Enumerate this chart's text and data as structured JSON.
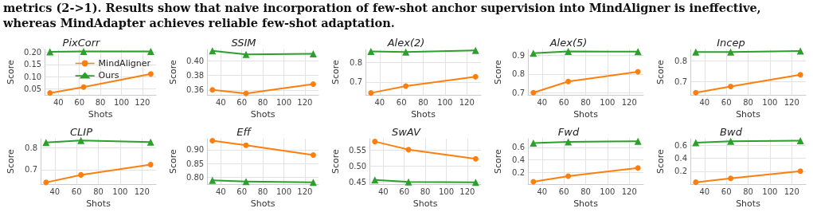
{
  "chart_data": [
    {
      "type": "line",
      "title": "PixCorr",
      "xlabel": "Shots",
      "ylabel": "Score",
      "annotations": [
        "metrics (2->1). Results show that naive incorporation of few-shot anchor supervision into MindAligner is ineffective, whereas MindAdapter achieves reliable few-shot adaptation."
      ],
      "x": [
        32,
        64,
        128
      ],
      "xlim": [
        27,
        133
      ],
      "xticks": [
        40,
        60,
        80,
        100,
        120
      ],
      "ylim": [
        0.025,
        0.212
      ],
      "yticks": [
        0.05,
        {
          "value": 0.1,
          "label": "0.10"
        },
        0.15,
        {
          "value": 0.2,
          "label": "0.20"
        }
      ],
      "grid": true,
      "legend": "top right",
      "series": [
        {
          "name": "MindAligner",
          "color": "#ff7f0e",
          "marker": "circle",
          "values": [
            0.033,
            0.057,
            0.111
          ]
        },
        {
          "name": "Ours",
          "color": "#2ca02c",
          "marker": "triangle",
          "values": [
            0.202,
            0.204,
            0.204
          ]
        }
      ]
    },
    {
      "type": "line",
      "title": "SSIM",
      "xlabel": "Shots",
      "ylabel": "Score",
      "x": [
        32,
        64,
        128
      ],
      "xlim": [
        27,
        133
      ],
      "xticks": [
        40,
        60,
        80,
        100,
        120
      ],
      "ylim": [
        0.353,
        0.416
      ],
      "yticks": [
        0.36,
        0.38,
        {
          "value": 0.4,
          "label": "0.40"
        }
      ],
      "grid": true,
      "series": [
        {
          "color": "#ff7f0e",
          "marker": "circle",
          "values": [
            0.36,
            0.355,
            0.368
          ]
        },
        {
          "color": "#2ca02c",
          "marker": "triangle",
          "values": [
            0.414,
            0.409,
            0.41
          ]
        }
      ]
    },
    {
      "type": "line",
      "title": "Alex(2)",
      "xlabel": "Shots",
      "ylabel": "Score",
      "x": [
        32,
        64,
        128
      ],
      "xlim": [
        27,
        133
      ],
      "xticks": [
        40,
        60,
        80,
        100,
        120
      ],
      "ylim": [
        0.635,
        0.865
      ],
      "yticks": [
        0.7,
        0.8
      ],
      "grid": true,
      "series": [
        {
          "color": "#ff7f0e",
          "marker": "circle",
          "values": [
            0.645,
            0.68,
            0.727
          ]
        },
        {
          "color": "#2ca02c",
          "marker": "triangle",
          "values": [
            0.855,
            0.852,
            0.86
          ]
        }
      ]
    },
    {
      "type": "line",
      "title": "Alex(5)",
      "xlabel": "Shots",
      "ylabel": "Score",
      "x": [
        32,
        64,
        128
      ],
      "xlim": [
        27,
        133
      ],
      "xticks": [
        40,
        60,
        80,
        100,
        120
      ],
      "ylim": [
        0.69,
        0.93
      ],
      "yticks": [
        0.7,
        0.8,
        0.9
      ],
      "grid": true,
      "series": [
        {
          "color": "#ff7f0e",
          "marker": "circle",
          "values": [
            0.702,
            0.761,
            0.812
          ]
        },
        {
          "color": "#2ca02c",
          "marker": "triangle",
          "values": [
            0.91,
            0.92,
            0.918
          ]
        }
      ]
    },
    {
      "type": "line",
      "title": "Incep",
      "xlabel": "Shots",
      "ylabel": "Score",
      "x": [
        32,
        64,
        128
      ],
      "xlim": [
        27,
        133
      ],
      "xticks": [
        40,
        60,
        80,
        100,
        120
      ],
      "ylim": [
        0.635,
        0.855
      ],
      "yticks": [
        0.7,
        0.8
      ],
      "grid": true,
      "series": [
        {
          "color": "#ff7f0e",
          "marker": "circle",
          "values": [
            0.646,
            0.676,
            0.733
          ]
        },
        {
          "color": "#2ca02c",
          "marker": "triangle",
          "values": [
            0.842,
            0.842,
            0.847
          ]
        }
      ]
    },
    {
      "type": "line",
      "title": "CLIP",
      "xlabel": "Shots",
      "ylabel": "Score",
      "x": [
        32,
        64,
        128
      ],
      "xlim": [
        27,
        133
      ],
      "xticks": [
        40,
        60,
        80,
        100,
        120
      ],
      "ylim": [
        0.635,
        0.84
      ],
      "yticks": [
        0.7,
        0.8
      ],
      "grid": true,
      "series": [
        {
          "color": "#ff7f0e",
          "marker": "circle",
          "values": [
            0.643,
            0.677,
            0.723
          ]
        },
        {
          "color": "#2ca02c",
          "marker": "triangle",
          "values": [
            0.823,
            0.832,
            0.825
          ]
        }
      ]
    },
    {
      "type": "line",
      "title": "Eff",
      "xlabel": "Shots",
      "ylabel": "Score",
      "x": [
        32,
        64,
        128
      ],
      "xlim": [
        27,
        133
      ],
      "xticks": [
        40,
        60,
        80,
        100,
        120
      ],
      "ylim": [
        0.775,
        0.94
      ],
      "yticks": [
        {
          "value": 0.8,
          "label": "0.80"
        },
        0.85,
        {
          "value": 0.9,
          "label": "0.90"
        }
      ],
      "grid": true,
      "series": [
        {
          "color": "#ff7f0e",
          "marker": "circle",
          "values": [
            0.933,
            0.916,
            0.881
          ]
        },
        {
          "color": "#2ca02c",
          "marker": "triangle",
          "values": [
            0.789,
            0.785,
            0.782
          ]
        }
      ]
    },
    {
      "type": "line",
      "title": "SwAV",
      "xlabel": "Shots",
      "ylabel": "Score",
      "x": [
        32,
        64,
        128
      ],
      "xlim": [
        27,
        133
      ],
      "xticks": [
        40,
        60,
        80,
        100,
        120
      ],
      "ylim": [
        0.443,
        0.585
      ],
      "yticks": [
        0.45,
        {
          "value": 0.5,
          "label": "0.50"
        },
        0.55
      ],
      "grid": true,
      "series": [
        {
          "color": "#ff7f0e",
          "marker": "circle",
          "values": [
            0.576,
            0.551,
            0.522
          ]
        },
        {
          "color": "#2ca02c",
          "marker": "triangle",
          "values": [
            0.456,
            0.45,
            0.449
          ]
        }
      ]
    },
    {
      "type": "line",
      "title": "Fwd",
      "xlabel": "Shots",
      "ylabel": "Score",
      "x": [
        32,
        64,
        128
      ],
      "xlim": [
        27,
        133
      ],
      "xticks": [
        40,
        60,
        80,
        100,
        120
      ],
      "ylim": [
        0.01,
        0.74
      ],
      "yticks": [
        0.2,
        0.4,
        0.6
      ],
      "grid": true,
      "series": [
        {
          "color": "#ff7f0e",
          "marker": "circle",
          "values": [
            0.05,
            0.14,
            0.27
          ]
        },
        {
          "color": "#2ca02c",
          "marker": "triangle",
          "values": [
            0.67,
            0.69,
            0.7
          ]
        }
      ]
    },
    {
      "type": "line",
      "title": "Bwd",
      "xlabel": "Shots",
      "ylabel": "Score",
      "x": [
        32,
        64,
        128
      ],
      "xlim": [
        27,
        133
      ],
      "xticks": [
        40,
        60,
        80,
        100,
        120
      ],
      "ylim": [
        0,
        0.7
      ],
      "yticks": [
        0.2,
        0.4,
        0.6
      ],
      "grid": true,
      "series": [
        {
          "color": "#ff7f0e",
          "marker": "circle",
          "values": [
            0.03,
            0.09,
            0.2
          ]
        },
        {
          "color": "#2ca02c",
          "marker": "triangle",
          "values": [
            0.64,
            0.66,
            0.67
          ]
        }
      ]
    }
  ]
}
